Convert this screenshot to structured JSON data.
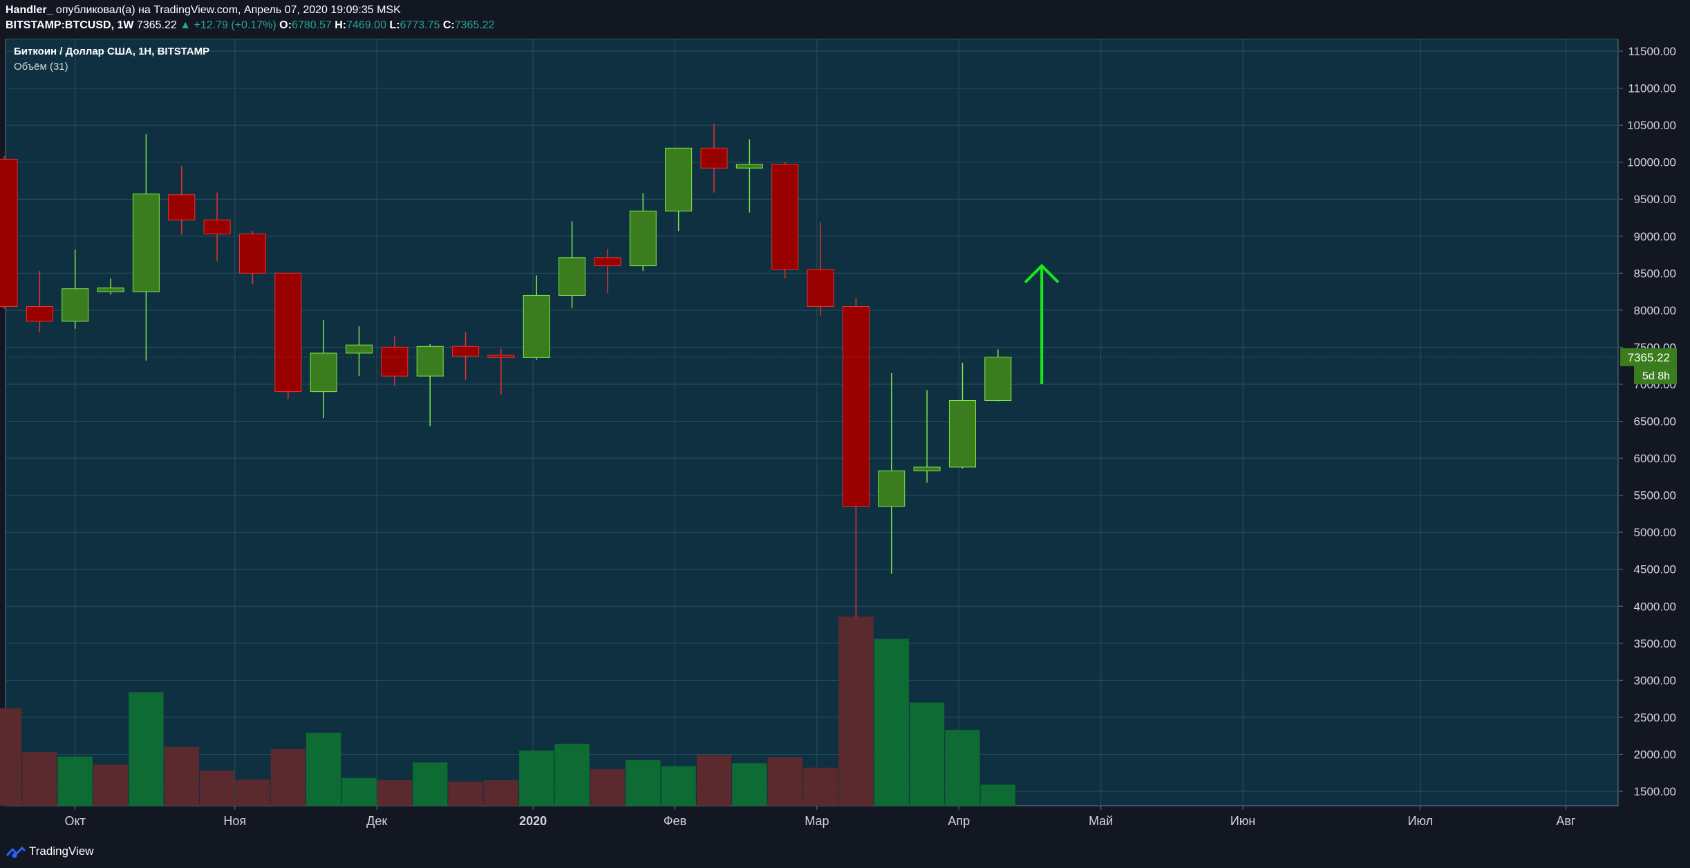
{
  "header": {
    "author": "Handler_",
    "published": " опубликовал(а) на TradingView.com, Апрель 07, 2020 19:09:35 MSK",
    "symbol": "BITSTAMP:BTCUSD, 1W",
    "last": "7365.22",
    "change": "▲ +12.79 (+0.17%)",
    "o_label": "O:",
    "o_value": "6780.57",
    "h_label": "H:",
    "h_value": "7469.00",
    "l_label": "L:",
    "l_value": "6773.75",
    "c_label": "C:",
    "c_value": "7365.22"
  },
  "legend": {
    "title": "Биткоин / Доллар США, 1Н, BITSTAMP",
    "volume": "Объём (31)"
  },
  "price_tag": "7365.22",
  "countdown_tag": "5d 8h",
  "footer": {
    "brand": "TradingView"
  },
  "colors": {
    "background": "#0f3040",
    "up": "#3b7d1e",
    "up_border": "#7ee84a",
    "down": "#990000",
    "down_border": "#e83030",
    "vol_up": "#0d6b33",
    "vol_down": "#5a2a2e",
    "arrow": "#17e817",
    "grid": "#285060"
  },
  "chart_data": {
    "type": "candlestick",
    "y_ticks": [
      "1500.00",
      "2000.00",
      "2500.00",
      "3000.00",
      "3500.00",
      "4000.00",
      "4500.00",
      "5000.00",
      "5500.00",
      "6000.00",
      "6500.00",
      "7000.00",
      "7500.00",
      "8000.00",
      "8500.00",
      "9000.00",
      "9500.00",
      "10000.00",
      "10500.00",
      "11000.00",
      "11500.00"
    ],
    "x_labels": [
      "Окт",
      "Ноя",
      "Дек",
      "2020",
      "Фев",
      "Мар",
      "Апр",
      "Май",
      "Июн",
      "Июл",
      "Авг"
    ],
    "x_label_weeks": [
      2,
      6.5,
      10.5,
      14.9,
      18.9,
      22.9,
      26.9,
      30.9,
      34.9,
      39.9,
      44
    ],
    "ylim": [
      1200,
      11800
    ],
    "candles": [
      {
        "w": 0,
        "o": 10040,
        "h": 10080,
        "l": 8020,
        "c": 8050
      },
      {
        "w": 1,
        "o": 8050,
        "h": 8530,
        "l": 7700,
        "c": 7850
      },
      {
        "w": 2,
        "o": 7850,
        "h": 8820,
        "l": 7750,
        "c": 8290
      },
      {
        "w": 3,
        "o": 8250,
        "h": 8430,
        "l": 8210,
        "c": 8300
      },
      {
        "w": 4,
        "o": 8250,
        "h": 10380,
        "l": 7320,
        "c": 9570
      },
      {
        "w": 5,
        "o": 9560,
        "h": 9950,
        "l": 9020,
        "c": 9220
      },
      {
        "w": 6,
        "o": 9220,
        "h": 9590,
        "l": 8660,
        "c": 9030
      },
      {
        "w": 7,
        "o": 9030,
        "h": 9070,
        "l": 8350,
        "c": 8500
      },
      {
        "w": 8,
        "o": 8500,
        "h": 8500,
        "l": 6800,
        "c": 6900
      },
      {
        "w": 9,
        "o": 6900,
        "h": 7870,
        "l": 6540,
        "c": 7420
      },
      {
        "w": 10,
        "o": 7420,
        "h": 7780,
        "l": 7110,
        "c": 7530
      },
      {
        "w": 11,
        "o": 7500,
        "h": 7650,
        "l": 6970,
        "c": 7110
      },
      {
        "w": 12,
        "o": 7110,
        "h": 7540,
        "l": 6430,
        "c": 7510
      },
      {
        "w": 13,
        "o": 7510,
        "h": 7700,
        "l": 7060,
        "c": 7380
      },
      {
        "w": 14,
        "o": 7390,
        "h": 7480,
        "l": 6860,
        "c": 7360
      },
      {
        "w": 15,
        "o": 7360,
        "h": 8470,
        "l": 7330,
        "c": 8200
      },
      {
        "w": 16,
        "o": 8200,
        "h": 9200,
        "l": 8030,
        "c": 8710
      },
      {
        "w": 17,
        "o": 8710,
        "h": 8830,
        "l": 8230,
        "c": 8600
      },
      {
        "w": 18,
        "o": 8600,
        "h": 9580,
        "l": 8530,
        "c": 9340
      },
      {
        "w": 19,
        "o": 9340,
        "h": 10180,
        "l": 9070,
        "c": 10190
      },
      {
        "w": 20,
        "o": 10190,
        "h": 10520,
        "l": 9590,
        "c": 9920
      },
      {
        "w": 21,
        "o": 9920,
        "h": 10310,
        "l": 9320,
        "c": 9970
      },
      {
        "w": 22,
        "o": 9970,
        "h": 10000,
        "l": 8430,
        "c": 8550
      },
      {
        "w": 23,
        "o": 8550,
        "h": 9190,
        "l": 7920,
        "c": 8050
      },
      {
        "w": 24,
        "o": 8050,
        "h": 8170,
        "l": 3850,
        "c": 5350
      },
      {
        "w": 25,
        "o": 5350,
        "h": 7150,
        "l": 4440,
        "c": 5830
      },
      {
        "w": 26,
        "o": 5830,
        "h": 6920,
        "l": 5670,
        "c": 5880
      },
      {
        "w": 27,
        "o": 5880,
        "h": 7290,
        "l": 5860,
        "c": 6780
      },
      {
        "w": 28,
        "o": 6780,
        "h": 7470,
        "l": 6770,
        "c": 7365
      }
    ],
    "volume": [
      {
        "w": 0,
        "v": 2620,
        "up": false
      },
      {
        "w": 1,
        "v": 2030,
        "up": false
      },
      {
        "w": 2,
        "v": 1970,
        "up": true
      },
      {
        "w": 3,
        "v": 1860,
        "up": false
      },
      {
        "w": 4,
        "v": 2840,
        "up": true
      },
      {
        "w": 5,
        "v": 2100,
        "up": false
      },
      {
        "w": 6,
        "v": 1780,
        "up": false
      },
      {
        "w": 7,
        "v": 1660,
        "up": false
      },
      {
        "w": 8,
        "v": 2070,
        "up": false
      },
      {
        "w": 9,
        "v": 2290,
        "up": true
      },
      {
        "w": 10,
        "v": 1680,
        "up": true
      },
      {
        "w": 11,
        "v": 1650,
        "up": false
      },
      {
        "w": 12,
        "v": 1890,
        "up": true
      },
      {
        "w": 13,
        "v": 1630,
        "up": false
      },
      {
        "w": 14,
        "v": 1650,
        "up": false
      },
      {
        "w": 15,
        "v": 2050,
        "up": true
      },
      {
        "w": 16,
        "v": 2140,
        "up": true
      },
      {
        "w": 17,
        "v": 1800,
        "up": false
      },
      {
        "w": 18,
        "v": 1920,
        "up": true
      },
      {
        "w": 19,
        "v": 1840,
        "up": true
      },
      {
        "w": 20,
        "v": 1990,
        "up": false
      },
      {
        "w": 21,
        "v": 1880,
        "up": true
      },
      {
        "w": 22,
        "v": 1960,
        "up": false
      },
      {
        "w": 23,
        "v": 1820,
        "up": false
      },
      {
        "w": 24,
        "v": 3860,
        "up": false
      },
      {
        "w": 25,
        "v": 3560,
        "up": true
      },
      {
        "w": 26,
        "v": 2700,
        "up": true
      },
      {
        "w": 27,
        "v": 2330,
        "up": true
      },
      {
        "w": 28,
        "v": 1590,
        "up": true
      }
    ],
    "arrow": {
      "w": 29,
      "from": 7000,
      "to": 8600
    },
    "last_price": 7365.22
  }
}
